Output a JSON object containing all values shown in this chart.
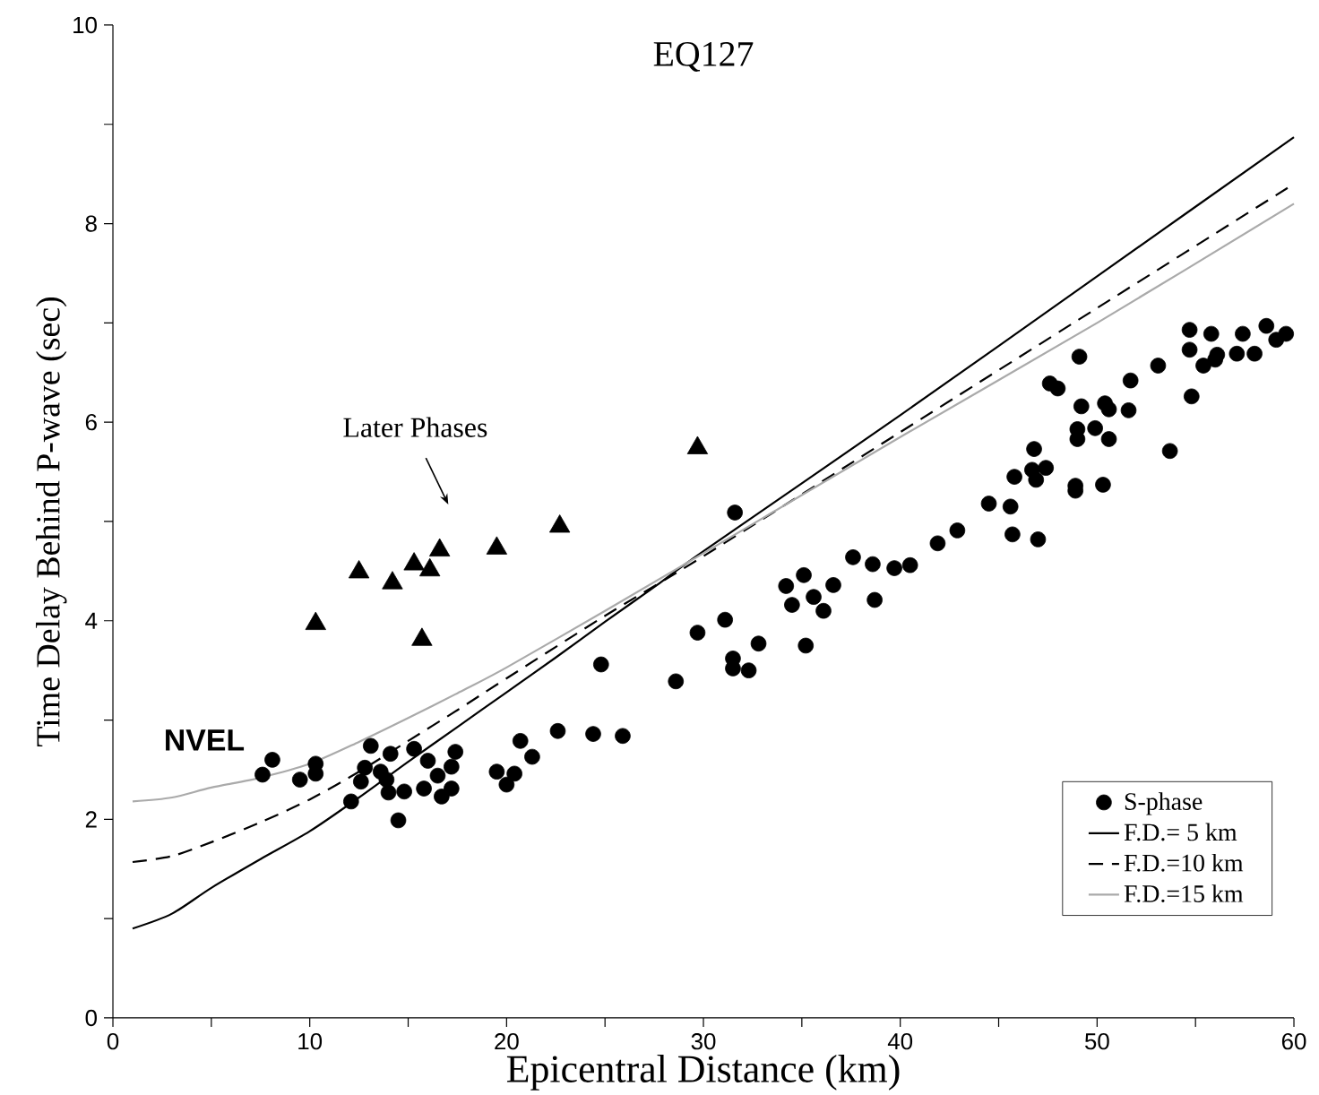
{
  "chart_data": {
    "type": "scatter",
    "title": "EQ127",
    "xlabel": "Epicentral  Distance  (km)",
    "ylabel": "Time Delay Behind P-wave  (sec)",
    "xlim": [
      0,
      60
    ],
    "ylim": [
      0,
      10
    ],
    "xticks": [
      0,
      {
        "value": 5,
        "label": null
      },
      10,
      {
        "value": 15,
        "label": null
      },
      20,
      {
        "value": 25,
        "label": null
      },
      30,
      {
        "value": 35,
        "label": null
      },
      40,
      {
        "value": 45,
        "label": null
      },
      50,
      {
        "value": 55,
        "label": null
      },
      60
    ],
    "yticks": [
      0,
      {
        "value": 1,
        "label": null
      },
      2,
      {
        "value": 3,
        "label": null
      },
      4,
      {
        "value": 5,
        "label": null
      },
      6,
      {
        "value": 7,
        "label": null
      },
      8,
      {
        "value": 9,
        "label": null
      },
      10
    ],
    "legend": "bottom right",
    "annotations": [
      "Later Phases",
      {
        "text": "NVEL",
        "x": 8.1,
        "y": 2.6
      }
    ],
    "series": [
      {
        "name": "S-phase",
        "marker": "circle",
        "color": "#000000",
        "x": [
          7.6,
          8.1,
          9.5,
          10.3,
          10.3,
          12.1,
          12.6,
          12.8,
          13.1,
          13.6,
          13.9,
          14.1,
          14.0,
          14.5,
          14.8,
          15.3,
          15.8,
          16.0,
          16.7,
          16.5,
          17.2,
          17.2,
          17.4,
          19.5,
          20.0,
          20.4,
          20.7,
          21.3,
          22.6,
          24.4,
          24.8,
          25.9,
          28.6,
          29.7,
          31.1,
          31.5,
          31.5,
          31.6,
          32.3,
          32.8,
          34.2,
          34.5,
          35.1,
          35.2,
          35.6,
          36.1,
          36.6,
          37.6,
          38.6,
          38.7,
          39.7,
          40.5,
          41.9,
          42.9,
          44.5,
          45.6,
          45.7,
          45.8,
          46.8,
          46.9,
          46.7,
          47.4,
          47.0,
          47.6,
          48.0,
          48.9,
          48.9,
          49.0,
          49.0,
          49.1,
          49.2,
          49.9,
          50.3,
          50.4,
          50.6,
          50.6,
          51.6,
          51.7,
          53.1,
          53.7,
          54.7,
          54.7,
          54.8,
          55.4,
          55.8,
          56.0,
          56.1,
          57.1,
          57.4,
          58.0,
          58.6,
          59.1,
          59.6
        ],
        "values": [
          2.45,
          2.6,
          2.4,
          2.56,
          2.46,
          2.18,
          2.38,
          2.52,
          2.74,
          2.48,
          2.4,
          2.66,
          2.27,
          1.99,
          2.28,
          2.71,
          2.31,
          2.59,
          2.23,
          2.44,
          2.53,
          2.31,
          2.68,
          2.48,
          2.35,
          2.46,
          2.79,
          2.63,
          2.89,
          2.86,
          3.56,
          2.84,
          3.39,
          3.88,
          4.01,
          3.52,
          3.62,
          5.09,
          3.5,
          3.77,
          4.35,
          4.16,
          4.46,
          3.75,
          4.24,
          4.1,
          4.36,
          4.64,
          4.57,
          4.21,
          4.53,
          4.56,
          4.78,
          4.91,
          5.18,
          5.15,
          4.87,
          5.45,
          5.73,
          5.42,
          5.52,
          5.54,
          4.82,
          6.39,
          6.34,
          5.36,
          5.31,
          5.93,
          5.83,
          6.66,
          6.16,
          5.94,
          5.37,
          6.19,
          5.83,
          6.13,
          6.12,
          6.42,
          6.57,
          5.71,
          6.93,
          6.73,
          6.26,
          6.57,
          6.89,
          6.63,
          6.68,
          6.69,
          6.89,
          6.69,
          6.97,
          6.83,
          6.89
        ]
      },
      {
        "marker": "triangle",
        "color": "#000000",
        "x": [
          10.3,
          12.5,
          14.2,
          15.3,
          15.7,
          16.1,
          16.6,
          19.5,
          22.7,
          29.7
        ],
        "values": [
          3.97,
          4.49,
          4.38,
          4.57,
          3.81,
          4.51,
          4.71,
          4.73,
          4.95,
          5.74
        ]
      },
      {
        "name": "F.D.=  5 km",
        "type": "line",
        "line_style": "solid",
        "color": "#000000",
        "x": [
          1,
          3,
          5,
          7.5,
          10,
          12.5,
          15,
          17.5,
          20,
          22.5,
          25,
          27.5,
          30,
          40,
          50,
          60
        ],
        "values": [
          0.9,
          1.05,
          1.31,
          1.6,
          1.88,
          2.22,
          2.58,
          2.93,
          3.28,
          3.63,
          3.99,
          4.34,
          4.7,
          6.07,
          7.47,
          8.87
        ]
      },
      {
        "name": "F.D.=10 km",
        "type": "line",
        "line_style": "dashed",
        "color": "#000000",
        "x": [
          1,
          3,
          5,
          7.5,
          10,
          12.5,
          15,
          17.5,
          20,
          25,
          30,
          40,
          50,
          60
        ],
        "values": [
          1.57,
          1.63,
          1.77,
          1.97,
          2.2,
          2.48,
          2.79,
          3.1,
          3.42,
          4.05,
          4.65,
          5.9,
          7.15,
          8.4
        ]
      },
      {
        "name": "F.D.=15 km",
        "type": "line",
        "line_style": "solid",
        "color": "#aaaaaa",
        "x": [
          1,
          3,
          5,
          7.5,
          10,
          12.5,
          15,
          17.5,
          20,
          25,
          30,
          40,
          50,
          60
        ],
        "values": [
          2.18,
          2.22,
          2.32,
          2.42,
          2.56,
          2.78,
          3.02,
          3.27,
          3.53,
          4.1,
          4.68,
          5.85,
          7.0,
          8.2
        ]
      }
    ]
  }
}
